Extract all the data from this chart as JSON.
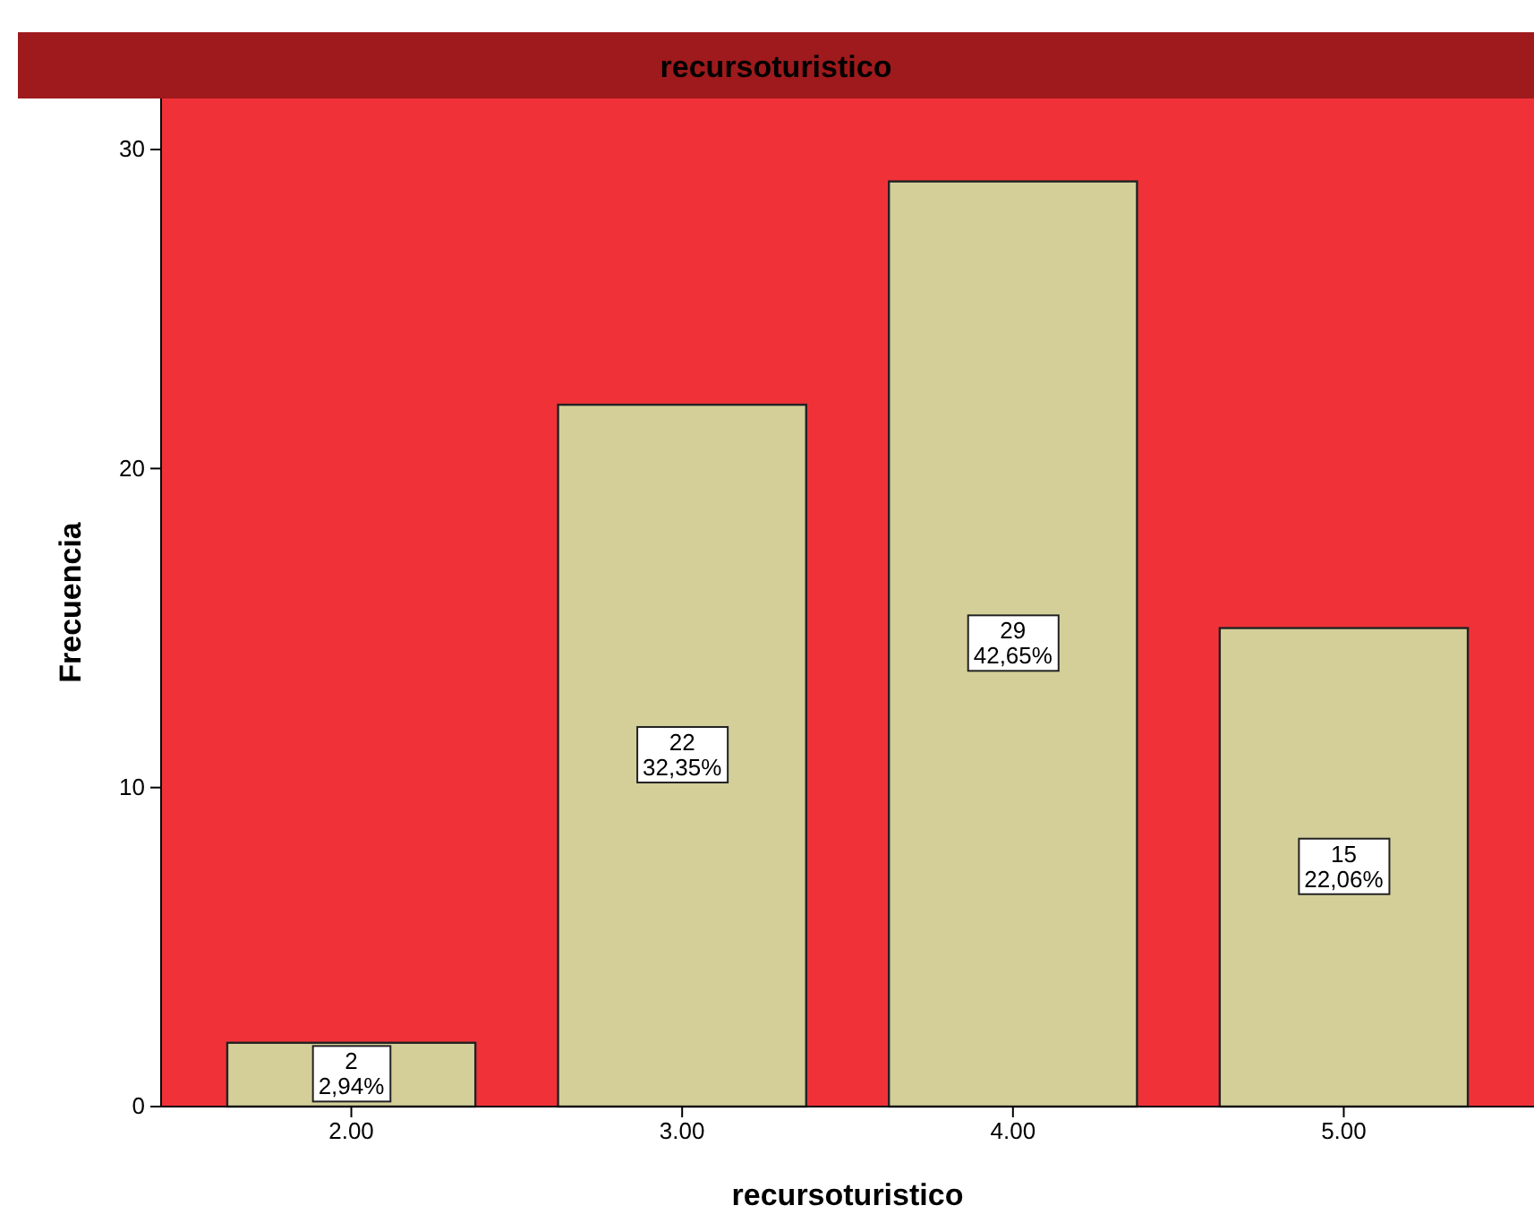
{
  "chart_data": {
    "type": "bar",
    "title": "recursoturistico",
    "xlabel": "recursoturistico",
    "ylabel": "Frecuencia",
    "categories": [
      "2.00",
      "3.00",
      "4.00",
      "5.00"
    ],
    "values": [
      2,
      22,
      29,
      15
    ],
    "value_labels": [
      "2\n2,94%",
      "22\n32,35%",
      "29\n42,65%",
      "15\n22,06%"
    ],
    "color": "#d4cf99",
    "ylim": [
      0,
      31.6
    ],
    "yticks": [
      0,
      10,
      20,
      30
    ]
  }
}
